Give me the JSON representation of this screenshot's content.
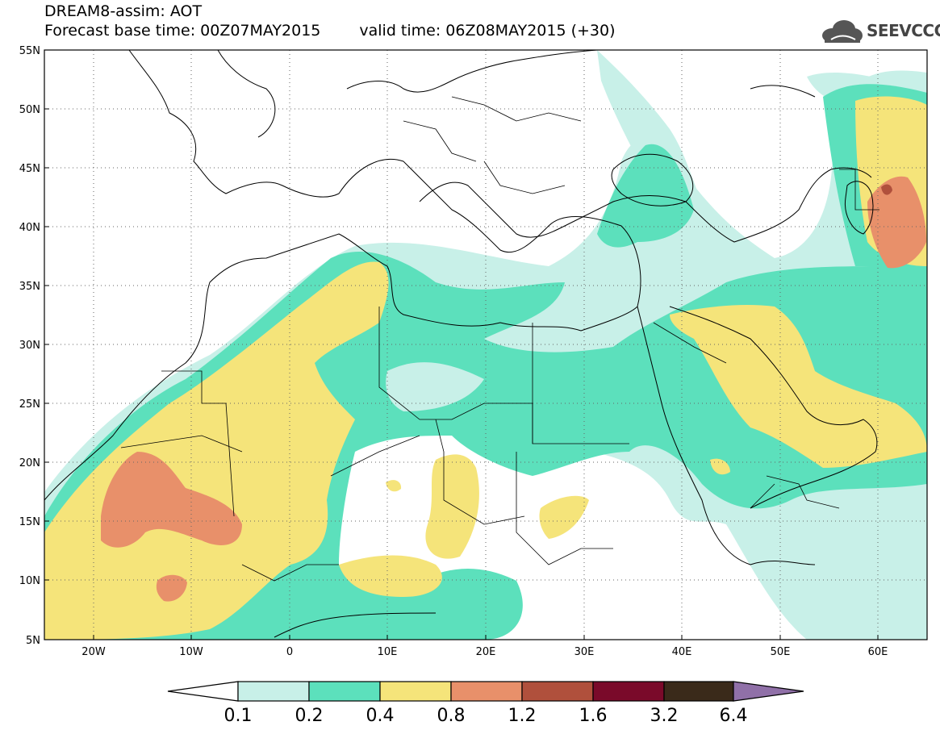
{
  "title": {
    "line1": "DREAM8-assim: AOT",
    "base": "Forecast base time: 00Z07MAY2015",
    "valid": "valid time: 06Z08MAY2015 (+30)"
  },
  "logo": {
    "text": "SEEVCCC",
    "icon": "cloud-icon"
  },
  "map": {
    "lon_range": [
      -25,
      65
    ],
    "lat_range": [
      5,
      55
    ],
    "lat_ticks": [
      "5N",
      "10N",
      "15N",
      "20N",
      "25N",
      "30N",
      "35N",
      "40N",
      "45N",
      "50N",
      "55N"
    ],
    "lon_ticks": [
      "20W",
      "10W",
      "0",
      "10E",
      "20E",
      "30E",
      "40E",
      "50E",
      "60E"
    ],
    "gridlines": "dotted"
  },
  "colorbar": {
    "labels": [
      "0.1",
      "0.2",
      "0.4",
      "0.8",
      "1.2",
      "1.6",
      "3.2",
      "6.4"
    ],
    "colors": [
      "#ffffff",
      "#c8f0e8",
      "#5ce0bc",
      "#f5e47a",
      "#e8906a",
      "#b0503c",
      "#7a0a2a",
      "#3a2a1a",
      "#9070a8"
    ]
  },
  "legend_colors": {
    "c01": "#c8f0e8",
    "c02": "#5ce0bc",
    "c04": "#f5e47a",
    "c08": "#e8906a",
    "c12": "#b0503c"
  }
}
